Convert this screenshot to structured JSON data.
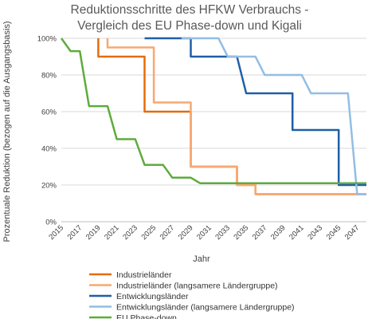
{
  "chart_data": {
    "type": "line",
    "title": [
      "Reduktionsschritte des HFKW Verbrauchs -",
      "Vergleich des EU Phase-down und Kigali"
    ],
    "xlabel": "Jahr",
    "ylabel": "Prozentuale Reduktion (bezogen auf die Ausgangsbasis)",
    "xlim": [
      2015,
      2048
    ],
    "ylim": [
      0,
      100
    ],
    "x_ticks": [
      "2015",
      "2017",
      "2019",
      "2021",
      "2023",
      "2025",
      "2027",
      "2029",
      "2031",
      "2033",
      "2035",
      "2037",
      "2039",
      "2041",
      "2043",
      "2045",
      "2047"
    ],
    "y_ticks": [
      "0%",
      "20%",
      "40%",
      "60%",
      "80%",
      "100%"
    ],
    "grid": "horizontal",
    "legend_position": "bottom",
    "series": [
      {
        "name": "Industrieländer",
        "color": "#E46C0A",
        "points": [
          [
            2019,
            100
          ],
          [
            2019,
            90
          ],
          [
            2024,
            90
          ],
          [
            2024,
            60
          ],
          [
            2029,
            60
          ],
          [
            2029,
            30
          ],
          [
            2034,
            30
          ],
          [
            2034,
            20
          ],
          [
            2036,
            20
          ],
          [
            2036,
            15
          ],
          [
            2048,
            15
          ]
        ]
      },
      {
        "name": "Industrieländer (langsamere Ländergruppe)",
        "color": "#F7A872",
        "points": [
          [
            2020,
            100
          ],
          [
            2020,
            95
          ],
          [
            2025,
            95
          ],
          [
            2025,
            65
          ],
          [
            2029,
            65
          ],
          [
            2029,
            30
          ],
          [
            2034,
            30
          ],
          [
            2034,
            20
          ],
          [
            2036,
            20
          ],
          [
            2036,
            15
          ],
          [
            2048,
            15
          ]
        ]
      },
      {
        "name": "Entwicklungsländer",
        "color": "#1F5FA6",
        "points": [
          [
            2024,
            100
          ],
          [
            2029,
            100
          ],
          [
            2029,
            90
          ],
          [
            2032,
            90
          ],
          [
            2032,
            90
          ],
          [
            2034,
            90
          ],
          [
            2035,
            70
          ],
          [
            2040,
            70
          ],
          [
            2040,
            50
          ],
          [
            2045,
            50
          ],
          [
            2045,
            20
          ],
          [
            2048,
            20
          ]
        ]
      },
      {
        "name": "Entwicklungsländer (langsamere Ländergruppe)",
        "color": "#93BEE4",
        "points": [
          [
            2028,
            100
          ],
          [
            2032,
            100
          ],
          [
            2033,
            90
          ],
          [
            2036,
            90
          ],
          [
            2037,
            80
          ],
          [
            2041,
            80
          ],
          [
            2042,
            70
          ],
          [
            2046,
            70
          ],
          [
            2047,
            15
          ],
          [
            2048,
            15
          ]
        ]
      },
      {
        "name": "EU Phase-down",
        "color": "#5EAB3C",
        "points": [
          [
            2015,
            100
          ],
          [
            2016,
            93
          ],
          [
            2017,
            93
          ],
          [
            2018,
            63
          ],
          [
            2020,
            63
          ],
          [
            2021,
            45
          ],
          [
            2023,
            45
          ],
          [
            2024,
            31
          ],
          [
            2026,
            31
          ],
          [
            2027,
            24
          ],
          [
            2029,
            24
          ],
          [
            2030,
            21
          ],
          [
            2048,
            21
          ]
        ]
      }
    ]
  }
}
